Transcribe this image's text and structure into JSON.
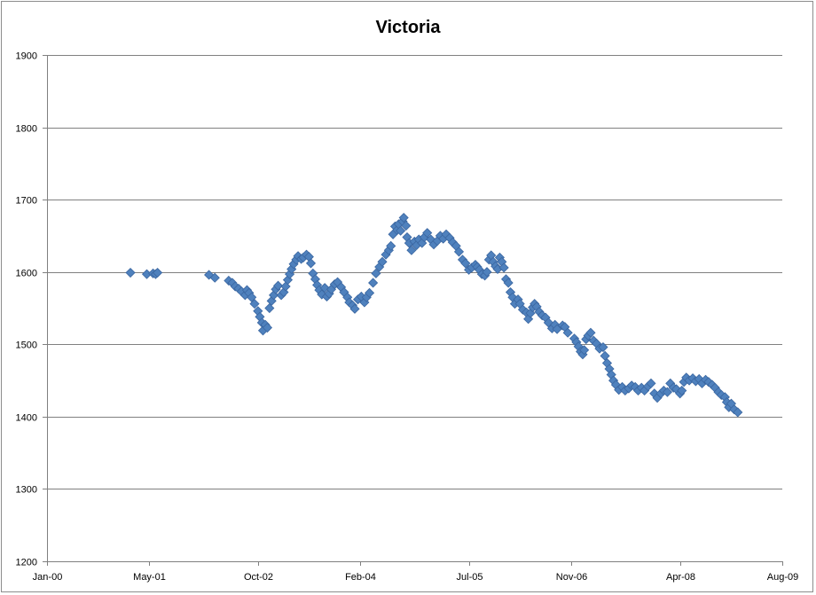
{
  "chart_data": {
    "type": "scatter",
    "title": "Victoria",
    "xlabel": "",
    "ylabel": "",
    "grid": true,
    "legend": "none",
    "marker": "diamond",
    "colors": {
      "marker_fill": "#4f81bd",
      "marker_stroke": "#3a66a0",
      "grid": "#808080",
      "axis": "#808080"
    },
    "xlim": [
      "2000-01-01",
      "2009-08-01"
    ],
    "ylim": [
      1200,
      1900
    ],
    "x_ticks": [
      "2000-01-01",
      "2001-05-01",
      "2002-10-01",
      "2004-02-01",
      "2005-07-01",
      "2006-11-01",
      "2008-04-01",
      "2009-08-01"
    ],
    "x_tick_labels": [
      "Jan-00",
      "May-01",
      "Oct-02",
      "Feb-04",
      "Jul-05",
      "Nov-06",
      "Apr-08",
      "Aug-09"
    ],
    "y_ticks": [
      1200,
      1300,
      1400,
      1500,
      1600,
      1700,
      1800,
      1900
    ],
    "y_tick_labels": [
      "1200",
      "1300",
      "1400",
      "1500",
      "1600",
      "1700",
      "1800",
      "1900"
    ],
    "points": [
      [
        "2001-02-01",
        1599
      ],
      [
        "2001-04-20",
        1597
      ],
      [
        "2001-05-20",
        1598
      ],
      [
        "2001-06-01",
        1597
      ],
      [
        "2001-06-10",
        1599
      ],
      [
        "2002-02-10",
        1596
      ],
      [
        "2002-03-10",
        1592
      ],
      [
        "2002-05-15",
        1588
      ],
      [
        "2002-06-01",
        1585
      ],
      [
        "2002-06-15",
        1580
      ],
      [
        "2002-07-01",
        1577
      ],
      [
        "2002-07-15",
        1573
      ],
      [
        "2002-08-01",
        1568
      ],
      [
        "2002-08-10",
        1575
      ],
      [
        "2002-08-20",
        1571
      ],
      [
        "2002-09-01",
        1565
      ],
      [
        "2002-09-15",
        1556
      ],
      [
        "2002-10-01",
        1546
      ],
      [
        "2002-10-10",
        1538
      ],
      [
        "2002-10-20",
        1530
      ],
      [
        "2002-10-25",
        1519
      ],
      [
        "2002-11-05",
        1527
      ],
      [
        "2002-11-15",
        1523
      ],
      [
        "2002-11-25",
        1550
      ],
      [
        "2002-12-05",
        1560
      ],
      [
        "2002-12-15",
        1568
      ],
      [
        "2002-12-25",
        1576
      ],
      [
        "2003-01-05",
        1581
      ],
      [
        "2003-01-20",
        1568
      ],
      [
        "2003-02-01",
        1572
      ],
      [
        "2003-02-10",
        1580
      ],
      [
        "2003-02-20",
        1589
      ],
      [
        "2003-03-01",
        1597
      ],
      [
        "2003-03-10",
        1604
      ],
      [
        "2003-03-20",
        1611
      ],
      [
        "2003-04-01",
        1617
      ],
      [
        "2003-04-10",
        1622
      ],
      [
        "2003-04-25",
        1618
      ],
      [
        "2003-05-05",
        1620
      ],
      [
        "2003-05-20",
        1624
      ],
      [
        "2003-06-01",
        1621
      ],
      [
        "2003-06-10",
        1612
      ],
      [
        "2003-06-20",
        1598
      ],
      [
        "2003-07-01",
        1590
      ],
      [
        "2003-07-10",
        1582
      ],
      [
        "2003-07-20",
        1575
      ],
      [
        "2003-08-01",
        1569
      ],
      [
        "2003-08-15",
        1578
      ],
      [
        "2003-08-25",
        1566
      ],
      [
        "2003-09-05",
        1570
      ],
      [
        "2003-09-15",
        1576
      ],
      [
        "2003-10-01",
        1583
      ],
      [
        "2003-10-15",
        1586
      ],
      [
        "2003-11-01",
        1579
      ],
      [
        "2003-11-15",
        1572
      ],
      [
        "2003-12-01",
        1565
      ],
      [
        "2003-12-10",
        1558
      ],
      [
        "2003-12-25",
        1554
      ],
      [
        "2004-01-05",
        1549
      ],
      [
        "2004-01-20",
        1562
      ],
      [
        "2004-02-05",
        1566
      ],
      [
        "2004-02-20",
        1558
      ],
      [
        "2004-03-01",
        1565
      ],
      [
        "2004-03-15",
        1571
      ],
      [
        "2004-04-01",
        1585
      ],
      [
        "2004-04-15",
        1598
      ],
      [
        "2004-05-01",
        1607
      ],
      [
        "2004-05-15",
        1614
      ],
      [
        "2004-06-01",
        1624
      ],
      [
        "2004-06-15",
        1630
      ],
      [
        "2004-06-25",
        1636
      ],
      [
        "2004-07-05",
        1652
      ],
      [
        "2004-07-15",
        1663
      ],
      [
        "2004-07-25",
        1658
      ],
      [
        "2004-08-01",
        1666
      ],
      [
        "2004-08-10",
        1657
      ],
      [
        "2004-08-20",
        1670
      ],
      [
        "2004-08-25",
        1675
      ],
      [
        "2004-09-05",
        1664
      ],
      [
        "2004-09-10",
        1648
      ],
      [
        "2004-09-20",
        1640
      ],
      [
        "2004-10-01",
        1630
      ],
      [
        "2004-10-15",
        1642
      ],
      [
        "2004-10-25",
        1637
      ],
      [
        "2004-11-05",
        1645
      ],
      [
        "2004-11-20",
        1640
      ],
      [
        "2004-12-01",
        1648
      ],
      [
        "2004-12-15",
        1654
      ],
      [
        "2005-01-01",
        1645
      ],
      [
        "2005-01-15",
        1638
      ],
      [
        "2005-02-01",
        1643
      ],
      [
        "2005-02-15",
        1650
      ],
      [
        "2005-03-01",
        1646
      ],
      [
        "2005-03-15",
        1652
      ],
      [
        "2005-04-01",
        1647
      ],
      [
        "2005-04-15",
        1641
      ],
      [
        "2005-05-01",
        1636
      ],
      [
        "2005-05-15",
        1628
      ],
      [
        "2005-06-01",
        1617
      ],
      [
        "2005-06-15",
        1612
      ],
      [
        "2005-07-01",
        1603
      ],
      [
        "2005-07-15",
        1606
      ],
      [
        "2005-08-01",
        1610
      ],
      [
        "2005-08-10",
        1607
      ],
      [
        "2005-08-20",
        1603
      ],
      [
        "2005-09-01",
        1597
      ],
      [
        "2005-09-15",
        1595
      ],
      [
        "2005-09-25",
        1600
      ],
      [
        "2005-10-05",
        1617
      ],
      [
        "2005-10-15",
        1623
      ],
      [
        "2005-10-25",
        1614
      ],
      [
        "2005-11-05",
        1608
      ],
      [
        "2005-11-15",
        1604
      ],
      [
        "2005-11-25",
        1620
      ],
      [
        "2005-12-05",
        1614
      ],
      [
        "2005-12-15",
        1606
      ],
      [
        "2005-12-25",
        1590
      ],
      [
        "2006-01-05",
        1585
      ],
      [
        "2006-01-15",
        1572
      ],
      [
        "2006-01-25",
        1565
      ],
      [
        "2006-02-05",
        1556
      ],
      [
        "2006-02-20",
        1562
      ],
      [
        "2006-03-01",
        1556
      ],
      [
        "2006-03-15",
        1548
      ],
      [
        "2006-04-01",
        1544
      ],
      [
        "2006-04-10",
        1535
      ],
      [
        "2006-04-20",
        1543
      ],
      [
        "2006-05-01",
        1551
      ],
      [
        "2006-05-10",
        1556
      ],
      [
        "2006-05-20",
        1552
      ],
      [
        "2006-06-01",
        1545
      ],
      [
        "2006-06-15",
        1540
      ],
      [
        "2006-07-01",
        1537
      ],
      [
        "2006-07-15",
        1530
      ],
      [
        "2006-08-01",
        1522
      ],
      [
        "2006-08-15",
        1527
      ],
      [
        "2006-08-25",
        1521
      ],
      [
        "2006-09-20",
        1526
      ],
      [
        "2006-10-01",
        1524
      ],
      [
        "2006-10-15",
        1516
      ],
      [
        "2006-11-15",
        1508
      ],
      [
        "2006-11-25",
        1503
      ],
      [
        "2006-12-05",
        1497
      ],
      [
        "2006-12-15",
        1490
      ],
      [
        "2006-12-25",
        1486
      ],
      [
        "2007-01-01",
        1492
      ],
      [
        "2007-01-10",
        1507
      ],
      [
        "2007-01-20",
        1512
      ],
      [
        "2007-02-01",
        1516
      ],
      [
        "2007-02-15",
        1505
      ],
      [
        "2007-03-01",
        1501
      ],
      [
        "2007-03-15",
        1494
      ],
      [
        "2007-04-01",
        1496
      ],
      [
        "2007-04-10",
        1484
      ],
      [
        "2007-04-20",
        1474
      ],
      [
        "2007-05-01",
        1466
      ],
      [
        "2007-05-10",
        1458
      ],
      [
        "2007-05-20",
        1450
      ],
      [
        "2007-06-01",
        1444
      ],
      [
        "2007-06-15",
        1437
      ],
      [
        "2007-07-01",
        1441
      ],
      [
        "2007-07-15",
        1436
      ],
      [
        "2007-08-01",
        1439
      ],
      [
        "2007-08-15",
        1443
      ],
      [
        "2007-09-01",
        1441
      ],
      [
        "2007-09-15",
        1436
      ],
      [
        "2007-10-01",
        1440
      ],
      [
        "2007-10-15",
        1436
      ],
      [
        "2007-11-01",
        1442
      ],
      [
        "2007-11-15",
        1446
      ],
      [
        "2007-12-01",
        1432
      ],
      [
        "2007-12-15",
        1426
      ],
      [
        "2008-01-01",
        1432
      ],
      [
        "2008-01-15",
        1436
      ],
      [
        "2008-02-01",
        1434
      ],
      [
        "2008-02-15",
        1446
      ],
      [
        "2008-03-01",
        1440
      ],
      [
        "2008-03-15",
        1438
      ],
      [
        "2008-04-01",
        1432
      ],
      [
        "2008-04-10",
        1436
      ],
      [
        "2008-04-20",
        1448
      ],
      [
        "2008-05-01",
        1454
      ],
      [
        "2008-05-15",
        1450
      ],
      [
        "2008-06-01",
        1453
      ],
      [
        "2008-06-15",
        1449
      ],
      [
        "2008-07-01",
        1452
      ],
      [
        "2008-07-15",
        1446
      ],
      [
        "2008-08-01",
        1451
      ],
      [
        "2008-08-15",
        1448
      ],
      [
        "2008-09-01",
        1444
      ],
      [
        "2008-09-15",
        1440
      ],
      [
        "2008-10-01",
        1434
      ],
      [
        "2008-10-15",
        1430
      ],
      [
        "2008-11-01",
        1427
      ],
      [
        "2008-11-10",
        1420
      ],
      [
        "2008-11-20",
        1413
      ],
      [
        "2008-12-01",
        1418
      ],
      [
        "2008-12-15",
        1410
      ],
      [
        "2009-01-01",
        1406
      ]
    ]
  }
}
